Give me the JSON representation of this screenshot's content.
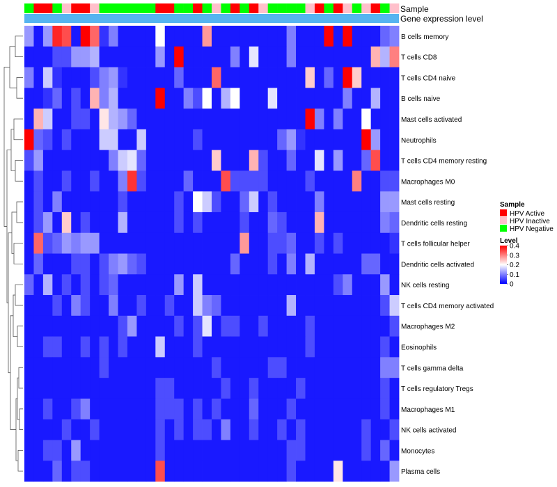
{
  "chart_data": {
    "type": "heatmap",
    "annotation_tracks": [
      {
        "label": "Sample",
        "values": [
          "HPV Negative",
          "HPV Active",
          "HPV Active",
          "HPV Negative",
          "HPV Inactive",
          "HPV Active",
          "HPV Active",
          "HPV Inactive",
          "HPV Negative",
          "HPV Negative",
          "HPV Negative",
          "HPV Negative",
          "HPV Negative",
          "HPV Negative",
          "HPV Active",
          "HPV Active",
          "HPV Negative",
          "HPV Negative",
          "HPV Active",
          "HPV Negative",
          "HPV Inactive",
          "HPV Negative",
          "HPV Active",
          "HPV Negative",
          "HPV Active",
          "HPV Inactive",
          "HPV Negative",
          "HPV Negative",
          "HPV Negative",
          "HPV Negative",
          "HPV Inactive",
          "HPV Active",
          "HPV Negative",
          "HPV Active",
          "HPV Inactive",
          "HPV Negative",
          "HPV Inactive",
          "HPV Active",
          "HPV Negative",
          "HPV Inactive"
        ]
      },
      {
        "label": "Gene expression level",
        "color": "#56b4f0"
      }
    ],
    "sample_legend": {
      "title": "Sample",
      "entries": [
        {
          "label": "HPV Active",
          "color": "#ff0000"
        },
        {
          "label": "HPV Inactive",
          "color": "#ffc0cb"
        },
        {
          "label": "HPV Negative",
          "color": "#00ff00"
        }
      ]
    },
    "color_scale": {
      "title": "Level",
      "min": 0,
      "max": 0.4,
      "colors": [
        "#0000ff",
        "#ffffff",
        "#ff0000"
      ],
      "ticks": [
        "0",
        "0.1",
        "0.2",
        "0.3",
        "0.4"
      ]
    },
    "rows": [
      "B cells memory",
      "T cells CD8",
      "T cells CD4 naive",
      "B cells naive",
      "Mast cells activated",
      "Neutrophils",
      "T cells CD4 memory resting",
      "Macrophages M0",
      "Mast cells resting",
      "Dendritic cells resting",
      "T cells follicular helper",
      "Dendritic cells activated",
      "NK cells resting",
      "T cells CD4 memory activated",
      "Macrophages M2",
      "Eosinophils",
      "T cells gamma delta",
      "T cells regulatory  Tregs",
      "Macrophages M1",
      "NK cells activated",
      "Monocytes",
      "Plasma cells"
    ],
    "values": [
      [
        0.12,
        0.02,
        0.12,
        0.37,
        0.34,
        0.02,
        0.4,
        0.32,
        0.04,
        0.1,
        0.02,
        0.02,
        0.02,
        0.02,
        0.2,
        0.02,
        0.02,
        0.02,
        0.02,
        0.28,
        0.02,
        0.02,
        0.02,
        0.02,
        0.02,
        0.02,
        0.02,
        0.02,
        0.1,
        0.02,
        0.02,
        0.02,
        0.4,
        0.02,
        0.4,
        0.02,
        0.02,
        0.02,
        0.08,
        0.1
      ],
      [
        0.02,
        0.02,
        0.02,
        0.06,
        0.06,
        0.12,
        0.12,
        0.14,
        0.02,
        0.02,
        0.02,
        0.02,
        0.02,
        0.02,
        0.12,
        0.02,
        0.4,
        0.02,
        0.02,
        0.02,
        0.02,
        0.02,
        0.1,
        0.02,
        0.18,
        0.02,
        0.02,
        0.02,
        0.1,
        0.02,
        0.02,
        0.02,
        0.02,
        0.02,
        0.02,
        0.02,
        0.02,
        0.26,
        0.14,
        0.3
      ],
      [
        0.1,
        0.02,
        0.16,
        0.04,
        0.02,
        0.02,
        0.02,
        0.06,
        0.1,
        0.12,
        0.04,
        0.02,
        0.02,
        0.02,
        0.02,
        0.02,
        0.08,
        0.02,
        0.02,
        0.02,
        0.32,
        0.02,
        0.02,
        0.02,
        0.02,
        0.02,
        0.02,
        0.02,
        0.02,
        0.02,
        0.24,
        0.02,
        0.08,
        0.02,
        0.4,
        0.24,
        0.02,
        0.02,
        0.02,
        0.02
      ],
      [
        0.02,
        0.02,
        0.04,
        0.08,
        0.02,
        0.06,
        0.02,
        0.26,
        0.1,
        0.14,
        0.02,
        0.02,
        0.02,
        0.02,
        0.4,
        0.02,
        0.02,
        0.1,
        0.06,
        0.2,
        0.02,
        0.14,
        0.2,
        0.02,
        0.02,
        0.02,
        0.18,
        0.02,
        0.02,
        0.02,
        0.02,
        0.02,
        0.02,
        0.02,
        0.1,
        0.02,
        0.02,
        0.14,
        0.02,
        0.02
      ],
      [
        0.02,
        0.26,
        0.16,
        0.02,
        0.02,
        0.06,
        0.06,
        0.02,
        0.22,
        0.14,
        0.12,
        0.08,
        0.02,
        0.02,
        0.02,
        0.02,
        0.02,
        0.02,
        0.02,
        0.02,
        0.02,
        0.02,
        0.02,
        0.02,
        0.02,
        0.02,
        0.02,
        0.02,
        0.02,
        0.02,
        0.4,
        0.1,
        0.02,
        0.1,
        0.02,
        0.02,
        0.2,
        0.02,
        0.02,
        0.02
      ],
      [
        0.4,
        0.08,
        0.06,
        0.02,
        0.06,
        0.02,
        0.02,
        0.02,
        0.16,
        0.16,
        0.02,
        0.02,
        0.16,
        0.02,
        0.02,
        0.02,
        0.02,
        0.02,
        0.06,
        0.02,
        0.02,
        0.02,
        0.02,
        0.02,
        0.02,
        0.02,
        0.02,
        0.08,
        0.12,
        0.04,
        0.02,
        0.02,
        0.02,
        0.02,
        0.02,
        0.02,
        0.4,
        0.12,
        0.02,
        0.02
      ],
      [
        0.06,
        0.12,
        0.02,
        0.02,
        0.02,
        0.02,
        0.02,
        0.02,
        0.02,
        0.1,
        0.16,
        0.18,
        0.08,
        0.02,
        0.02,
        0.02,
        0.02,
        0.02,
        0.02,
        0.02,
        0.24,
        0.02,
        0.02,
        0.02,
        0.26,
        0.06,
        0.02,
        0.02,
        0.08,
        0.02,
        0.02,
        0.18,
        0.02,
        0.12,
        0.02,
        0.02,
        0.08,
        0.34,
        0.02,
        0.02
      ],
      [
        0.02,
        0.06,
        0.02,
        0.02,
        0.06,
        0.02,
        0.02,
        0.06,
        0.02,
        0.02,
        0.1,
        0.36,
        0.06,
        0.02,
        0.02,
        0.02,
        0.02,
        0.08,
        0.02,
        0.02,
        0.02,
        0.34,
        0.06,
        0.06,
        0.06,
        0.06,
        0.02,
        0.02,
        0.02,
        0.02,
        0.06,
        0.02,
        0.02,
        0.02,
        0.02,
        0.3,
        0.02,
        0.02,
        0.06,
        0.06
      ],
      [
        0.02,
        0.06,
        0.02,
        0.1,
        0.02,
        0.02,
        0.02,
        0.02,
        0.02,
        0.02,
        0.06,
        0.02,
        0.02,
        0.02,
        0.02,
        0.02,
        0.06,
        0.02,
        0.2,
        0.16,
        0.06,
        0.02,
        0.02,
        0.08,
        0.16,
        0.02,
        0.06,
        0.02,
        0.02,
        0.02,
        0.02,
        0.1,
        0.02,
        0.02,
        0.02,
        0.02,
        0.02,
        0.02,
        0.12,
        0.12
      ],
      [
        0.02,
        0.06,
        0.12,
        0.02,
        0.24,
        0.02,
        0.06,
        0.02,
        0.02,
        0.02,
        0.14,
        0.02,
        0.02,
        0.02,
        0.02,
        0.02,
        0.06,
        0.02,
        0.06,
        0.02,
        0.02,
        0.02,
        0.02,
        0.06,
        0.02,
        0.02,
        0.08,
        0.06,
        0.02,
        0.02,
        0.02,
        0.26,
        0.02,
        0.02,
        0.02,
        0.02,
        0.02,
        0.02,
        0.1,
        0.08
      ],
      [
        0.02,
        0.32,
        0.06,
        0.08,
        0.12,
        0.1,
        0.12,
        0.12,
        0.02,
        0.02,
        0.02,
        0.02,
        0.02,
        0.02,
        0.02,
        0.02,
        0.02,
        0.02,
        0.02,
        0.02,
        0.02,
        0.02,
        0.02,
        0.28,
        0.02,
        0.02,
        0.06,
        0.06,
        0.08,
        0.02,
        0.02,
        0.06,
        0.02,
        0.06,
        0.02,
        0.02,
        0.02,
        0.02,
        0.02,
        0.04
      ],
      [
        0.02,
        0.08,
        0.02,
        0.02,
        0.02,
        0.06,
        0.06,
        0.02,
        0.06,
        0.1,
        0.12,
        0.08,
        0.06,
        0.02,
        0.02,
        0.02,
        0.02,
        0.02,
        0.02,
        0.02,
        0.02,
        0.02,
        0.08,
        0.02,
        0.02,
        0.02,
        0.06,
        0.02,
        0.1,
        0.02,
        0.14,
        0.02,
        0.02,
        0.02,
        0.02,
        0.02,
        0.08,
        0.08,
        0.02,
        0.02
      ],
      [
        0.08,
        0.02,
        0.14,
        0.02,
        0.06,
        0.02,
        0.06,
        0.02,
        0.06,
        0.08,
        0.02,
        0.02,
        0.02,
        0.02,
        0.02,
        0.02,
        0.12,
        0.02,
        0.16,
        0.02,
        0.02,
        0.02,
        0.02,
        0.02,
        0.02,
        0.02,
        0.02,
        0.02,
        0.02,
        0.02,
        0.02,
        0.02,
        0.02,
        0.06,
        0.1,
        0.02,
        0.02,
        0.02,
        0.12,
        0.02
      ],
      [
        0.02,
        0.02,
        0.02,
        0.06,
        0.02,
        0.1,
        0.06,
        0.02,
        0.02,
        0.1,
        0.02,
        0.02,
        0.06,
        0.02,
        0.02,
        0.06,
        0.02,
        0.02,
        0.16,
        0.1,
        0.08,
        0.02,
        0.02,
        0.02,
        0.02,
        0.02,
        0.02,
        0.02,
        0.14,
        0.02,
        0.02,
        0.02,
        0.02,
        0.02,
        0.02,
        0.02,
        0.02,
        0.02,
        0.06,
        0.16
      ],
      [
        0.02,
        0.02,
        0.02,
        0.02,
        0.02,
        0.02,
        0.02,
        0.02,
        0.02,
        0.02,
        0.06,
        0.12,
        0.02,
        0.02,
        0.02,
        0.02,
        0.06,
        0.02,
        0.06,
        0.18,
        0.02,
        0.06,
        0.06,
        0.02,
        0.02,
        0.06,
        0.02,
        0.02,
        0.02,
        0.02,
        0.06,
        0.02,
        0.02,
        0.02,
        0.02,
        0.02,
        0.02,
        0.02,
        0.02,
        0.06
      ],
      [
        0.02,
        0.02,
        0.06,
        0.06,
        0.02,
        0.02,
        0.06,
        0.02,
        0.06,
        0.02,
        0.06,
        0.02,
        0.02,
        0.02,
        0.16,
        0.02,
        0.02,
        0.02,
        0.06,
        0.02,
        0.02,
        0.02,
        0.02,
        0.02,
        0.02,
        0.02,
        0.02,
        0.02,
        0.02,
        0.02,
        0.06,
        0.02,
        0.02,
        0.02,
        0.02,
        0.02,
        0.02,
        0.02,
        0.06,
        0.02
      ],
      [
        0.02,
        0.02,
        0.02,
        0.02,
        0.02,
        0.02,
        0.02,
        0.02,
        0.06,
        0.02,
        0.02,
        0.02,
        0.02,
        0.02,
        0.02,
        0.02,
        0.02,
        0.02,
        0.02,
        0.02,
        0.06,
        0.02,
        0.02,
        0.02,
        0.02,
        0.02,
        0.06,
        0.06,
        0.02,
        0.02,
        0.02,
        0.02,
        0.02,
        0.02,
        0.02,
        0.02,
        0.02,
        0.02,
        0.1,
        0.1
      ],
      [
        0.02,
        0.02,
        0.02,
        0.02,
        0.02,
        0.02,
        0.02,
        0.02,
        0.02,
        0.02,
        0.02,
        0.02,
        0.02,
        0.02,
        0.06,
        0.06,
        0.02,
        0.02,
        0.02,
        0.02,
        0.02,
        0.06,
        0.02,
        0.02,
        0.06,
        0.02,
        0.02,
        0.02,
        0.02,
        0.06,
        0.02,
        0.02,
        0.02,
        0.02,
        0.02,
        0.02,
        0.02,
        0.02,
        0.06,
        0.02
      ],
      [
        0.02,
        0.02,
        0.06,
        0.02,
        0.02,
        0.06,
        0.1,
        0.02,
        0.02,
        0.02,
        0.02,
        0.02,
        0.02,
        0.02,
        0.06,
        0.06,
        0.06,
        0.02,
        0.06,
        0.02,
        0.06,
        0.02,
        0.02,
        0.02,
        0.08,
        0.02,
        0.02,
        0.02,
        0.06,
        0.02,
        0.02,
        0.02,
        0.02,
        0.02,
        0.02,
        0.02,
        0.02,
        0.02,
        0.06,
        0.02
      ],
      [
        0.02,
        0.02,
        0.02,
        0.02,
        0.06,
        0.02,
        0.02,
        0.06,
        0.02,
        0.02,
        0.02,
        0.02,
        0.02,
        0.02,
        0.06,
        0.02,
        0.06,
        0.02,
        0.06,
        0.06,
        0.02,
        0.1,
        0.02,
        0.02,
        0.06,
        0.02,
        0.02,
        0.06,
        0.02,
        0.06,
        0.02,
        0.02,
        0.02,
        0.02,
        0.02,
        0.02,
        0.06,
        0.02,
        0.02,
        0.06
      ],
      [
        0.02,
        0.02,
        0.06,
        0.06,
        0.02,
        0.12,
        0.02,
        0.02,
        0.02,
        0.02,
        0.02,
        0.02,
        0.02,
        0.02,
        0.06,
        0.02,
        0.02,
        0.02,
        0.02,
        0.02,
        0.02,
        0.02,
        0.02,
        0.02,
        0.02,
        0.02,
        0.02,
        0.02,
        0.06,
        0.06,
        0.02,
        0.02,
        0.02,
        0.02,
        0.02,
        0.02,
        0.06,
        0.02,
        0.08,
        0.02
      ],
      [
        0.02,
        0.02,
        0.02,
        0.08,
        0.02,
        0.06,
        0.06,
        0.02,
        0.02,
        0.02,
        0.02,
        0.02,
        0.02,
        0.02,
        0.34,
        0.02,
        0.02,
        0.02,
        0.02,
        0.02,
        0.02,
        0.02,
        0.02,
        0.02,
        0.02,
        0.02,
        0.02,
        0.02,
        0.06,
        0.02,
        0.02,
        0.02,
        0.02,
        0.22,
        0.02,
        0.02,
        0.02,
        0.02,
        0.02,
        0.12
      ]
    ]
  }
}
